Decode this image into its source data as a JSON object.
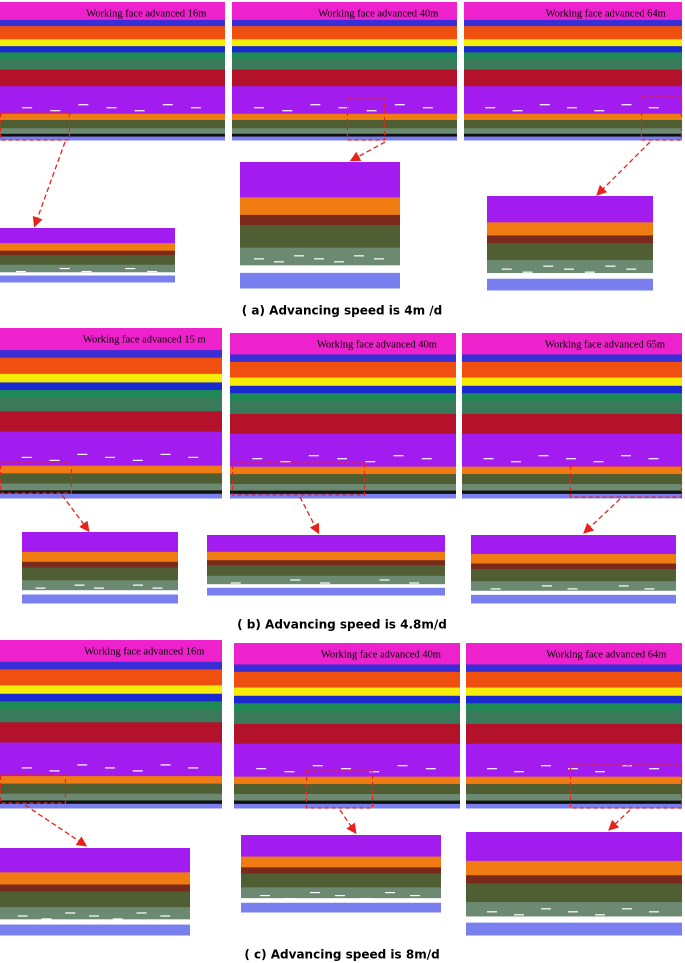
{
  "figure": {
    "rows": [
      {
        "panels": [
          {
            "label": "Working face advanced 16m"
          },
          {
            "label": "Working face advanced 40m"
          },
          {
            "label": "Working face advanced 64m"
          }
        ],
        "caption": "( a) Advancing speed is 4m /d"
      },
      {
        "panels": [
          {
            "label": "Working face advanced 15 m"
          },
          {
            "label": "Working face advanced 40m"
          },
          {
            "label": "Working face advanced 65m"
          }
        ],
        "caption": "( b) Advancing speed is 4.8m/d"
      },
      {
        "panels": [
          {
            "label": "Working face advanced 16m"
          },
          {
            "label": "Working face advanced 40m"
          },
          {
            "label": "Working face advanced 64m"
          }
        ],
        "caption": "( c) Advancing speed is 8m/d"
      }
    ]
  }
}
